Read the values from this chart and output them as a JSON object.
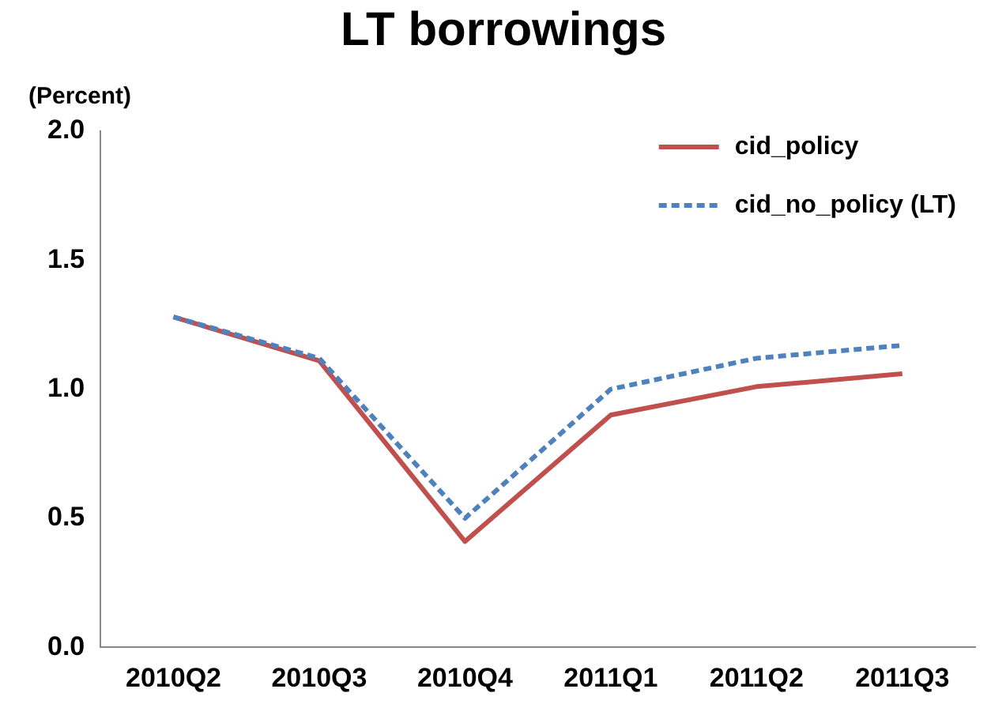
{
  "chart_data": {
    "type": "line",
    "title": "LT borrowings",
    "ylabel": "(Percent)",
    "categories": [
      "2010Q2",
      "2010Q3",
      "2010Q4",
      "2011Q1",
      "2011Q2",
      "2011Q3"
    ],
    "series": [
      {
        "name": "cid_policy",
        "color": "#c0504d",
        "line_style": "solid",
        "values": [
          1.28,
          1.11,
          0.41,
          0.9,
          1.01,
          1.06
        ]
      },
      {
        "name": "cid_no_policy (LT)",
        "color": "#4f81bd",
        "line_style": "dashed",
        "values": [
          1.28,
          1.12,
          0.5,
          1.0,
          1.12,
          1.17
        ]
      }
    ],
    "ylim": [
      0,
      2
    ],
    "yticks": [
      {
        "value": 0,
        "label": "0.0"
      },
      0.5,
      {
        "value": 1,
        "label": "1.0"
      },
      1.5,
      {
        "value": 2,
        "label": "2.0"
      }
    ],
    "grid": false,
    "legend": "top right",
    "marker": "none"
  }
}
